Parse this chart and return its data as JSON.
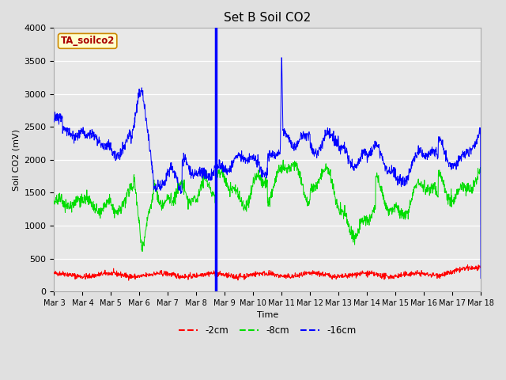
{
  "title": "Set B Soil CO2",
  "ylabel": "Soil CO2 (mV)",
  "xlabel": "Time",
  "legend_label": "TA_soilco2",
  "series_labels": [
    "-2cm",
    "-8cm",
    "-16cm"
  ],
  "series_colors": [
    "#ff0000",
    "#00dd00",
    "#0000ff"
  ],
  "plot_bg_color": "#e8e8e8",
  "fig_bg_color": "#e0e0e0",
  "ylim": [
    0,
    4000
  ],
  "xlim": [
    0,
    15
  ],
  "xtick_labels": [
    "Mar 3",
    "Mar 4",
    "Mar 5",
    "Mar 6",
    "Mar 7",
    "Mar 8",
    "Mar 9",
    "Mar 10",
    "Mar 11",
    "Mar 12",
    "Mar 13",
    "Mar 14",
    "Mar 15",
    "Mar 16",
    "Mar 17",
    "Mar 18"
  ],
  "vline_x": 5.7,
  "spike_blue_x": 7.9,
  "spike_blue_y": 3700,
  "n_points": 1500
}
